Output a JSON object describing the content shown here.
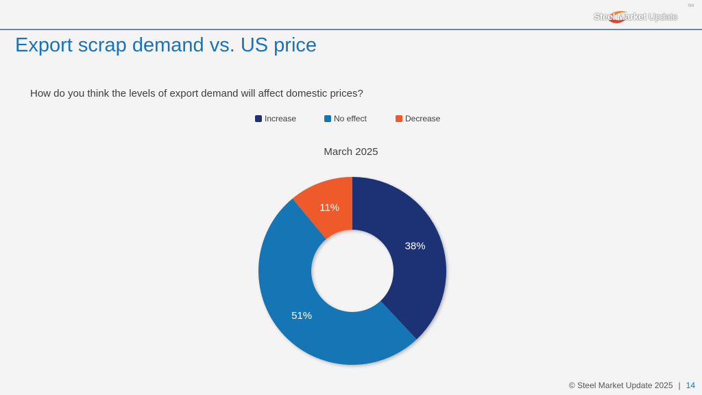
{
  "header": {
    "logo_text_bold": "Steel Market",
    "logo_text_light": "Update",
    "logo_mark": "SM"
  },
  "slide": {
    "title": "Export scrap demand vs. US price",
    "question": "How do you think the levels of export demand will affect domestic prices?"
  },
  "footer": {
    "copyright": "© Steel Market Update 2025",
    "separator": "|",
    "page_number": "14"
  },
  "chart_data": {
    "type": "pie",
    "title": "March 2025",
    "donut": true,
    "legend_position": "top",
    "categories": [
      "Increase",
      "No effect",
      "Decrease"
    ],
    "values": [
      38,
      51,
      11
    ],
    "labels": [
      "38%",
      "51%",
      "11%"
    ],
    "colors": [
      "#1f3174",
      "#1474b4",
      "#ee5a2b"
    ]
  }
}
